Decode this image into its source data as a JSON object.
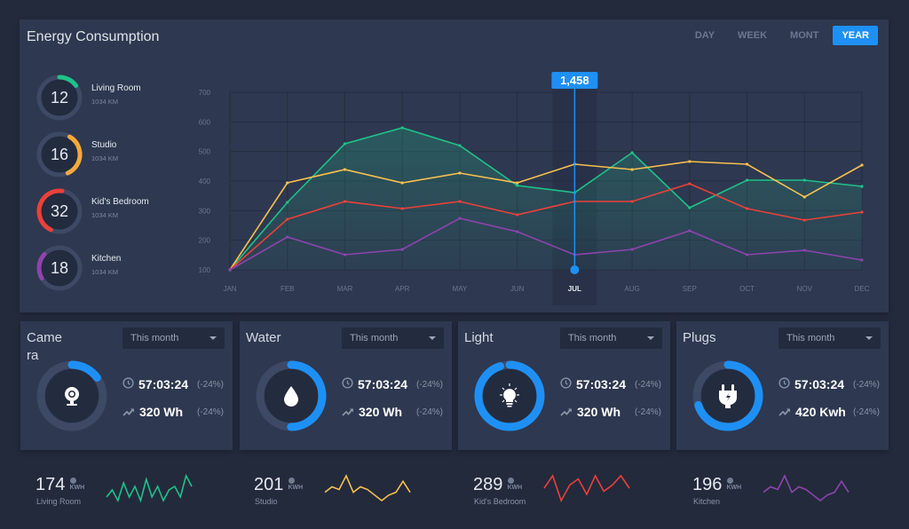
{
  "header": {
    "title": "Energy Consumption",
    "tabs": [
      {
        "label": "DAY"
      },
      {
        "label": "WEEK"
      },
      {
        "label": "MONT"
      },
      {
        "label": "YEAR",
        "active": true
      }
    ]
  },
  "rooms": [
    {
      "value": "12",
      "name": "Living Room",
      "sub": "1034 KM",
      "color": "#1fc28a",
      "progress": 0.15
    },
    {
      "value": "16",
      "name": "Studio",
      "sub": "1034 KM",
      "color": "#f6a93b",
      "progress": 0.35
    },
    {
      "value": "32",
      "name": "Kid's Bedroom",
      "sub": "1034 KM",
      "color": "#ea4139",
      "progress": 0.45
    },
    {
      "value": "18",
      "name": "Kitchen",
      "sub": "1034 KM",
      "color": "#8e44ad",
      "progress": 0.2
    }
  ],
  "chart_data": {
    "type": "line",
    "categories": [
      "JAN",
      "FEB",
      "MAR",
      "APR",
      "MAY",
      "JUN",
      "JUL",
      "AUG",
      "SEP",
      "OCT",
      "NOV",
      "DEC"
    ],
    "ylim": [
      100,
      700
    ],
    "yticks": [
      "700",
      "600",
      "500",
      "400",
      "300",
      "200",
      "100"
    ],
    "grid": true,
    "highlight": {
      "category": "JUL",
      "label": "1,458",
      "color": "#1e90f5"
    },
    "series": [
      {
        "color": "#1fc28a",
        "filled": true,
        "values": [
          100,
          328,
          526,
          580,
          520,
          385,
          361,
          496,
          310,
          403,
          403,
          382
        ]
      },
      {
        "color": "#f6c04f",
        "values": [
          100,
          394,
          439,
          394,
          427,
          394,
          457,
          439,
          466,
          457,
          346,
          454
        ]
      },
      {
        "color": "#ea4139",
        "values": [
          100,
          271,
          331,
          307,
          331,
          286,
          331,
          331,
          391,
          307,
          268,
          295
        ]
      },
      {
        "color": "#8e44ad",
        "values": [
          100,
          211,
          151,
          169,
          274,
          229,
          151,
          169,
          232,
          151,
          166,
          133
        ]
      }
    ]
  },
  "cards": [
    {
      "title": "Camera",
      "period": "This month",
      "icon": "webcam-icon",
      "progress": 0.15,
      "time": "57:03:24",
      "time_change": "(-24%)",
      "energy": "320 Wh",
      "energy_change": "(-24%)"
    },
    {
      "title": "Water",
      "period": "This month",
      "icon": "water-drop-icon",
      "progress": 0.5,
      "time": "57:03:24",
      "time_change": "(-24%)",
      "energy": "320 Wh",
      "energy_change": "(-24%)"
    },
    {
      "title": "Light",
      "period": "This month",
      "icon": "light-bulb-icon",
      "progress": 0.95,
      "time": "57:03:24",
      "time_change": "(-24%)",
      "energy": "320 Wh",
      "energy_change": "(-24%)"
    },
    {
      "title": "Plugs",
      "period": "This month",
      "icon": "plug-icon",
      "progress": 0.7,
      "time": "57:03:24",
      "time_change": "(-24%)",
      "energy": "420 Kwh",
      "energy_change": "(-24%)"
    }
  ],
  "accent": "#1e90f5",
  "summary": [
    {
      "value": "174",
      "unit": "KWH",
      "label": "Living Room",
      "color": "#1fc28a",
      "spark": [
        3,
        5,
        2,
        7,
        3,
        6,
        2,
        8,
        3,
        6,
        2,
        5,
        6,
        3,
        9,
        6
      ]
    },
    {
      "value": "201",
      "unit": "KWH",
      "label": "Studio",
      "color": "#f6c04f",
      "spark": [
        4,
        6,
        5,
        10,
        4,
        6,
        5,
        3,
        1,
        3,
        4,
        8,
        4
      ]
    },
    {
      "value": "289",
      "unit": "KWH",
      "label": "Kid's Bedroom",
      "color": "#ea4139",
      "spark": [
        5,
        9,
        1,
        6,
        8,
        3,
        9,
        4,
        6,
        9,
        5
      ]
    },
    {
      "value": "196",
      "unit": "KWH",
      "label": "Kitchen",
      "color": "#8e44ad",
      "spark": [
        4,
        6,
        5,
        10,
        4,
        6,
        5,
        3,
        1,
        3,
        4,
        8,
        4
      ]
    }
  ]
}
